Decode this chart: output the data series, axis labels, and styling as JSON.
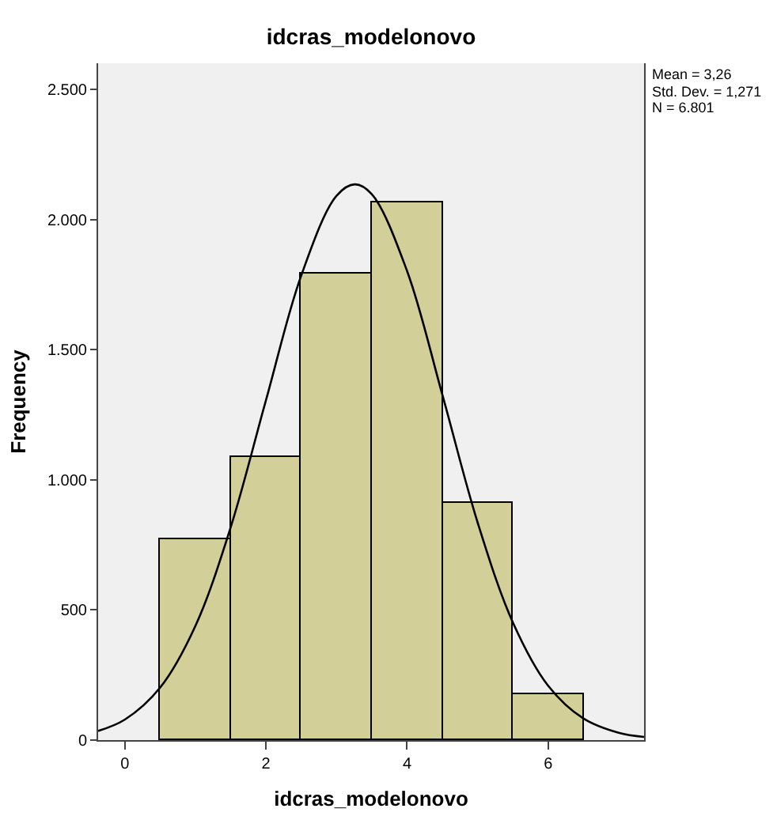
{
  "chart_data": {
    "type": "histogram",
    "title": "idcras_modelonovo",
    "xlabel": "idcras_modelonovo",
    "ylabel": "Frequency",
    "bins": [
      0.5,
      1.5,
      2.5,
      3.5,
      4.5,
      5.5,
      6.5
    ],
    "values": [
      770,
      1090,
      1790,
      2065,
      910,
      175
    ],
    "color": "#d3cf99",
    "series": [
      {
        "type": "line",
        "color": "#000000",
        "x": [
          -0.38,
          0,
          0.5,
          1,
          1.5,
          2,
          2.5,
          3,
          3.26,
          3.5,
          4,
          4.5,
          5,
          5.5,
          6,
          6.5,
          7,
          7.36
        ],
        "values": [
          35,
          79,
          202,
          439,
          818,
          1306,
          1785,
          2091,
          2135,
          2097,
          1802,
          1327,
          836,
          452,
          209,
          83,
          28,
          12
        ]
      }
    ],
    "xlim": [
      -0.38,
      7.36
    ],
    "xticks": [
      0,
      2,
      4,
      6
    ],
    "ylim": [
      0,
      2600
    ],
    "yticks": [
      0,
      500,
      {
        "value": 1000,
        "label": "1.000"
      },
      {
        "value": 1500,
        "label": "1.500"
      },
      {
        "value": 2000,
        "label": "2.000"
      },
      {
        "value": 2500,
        "label": "2.500"
      }
    ],
    "annotations": [
      "Mean = 3,26",
      "Std. Dev. = 1,271",
      "N = 6.801"
    ],
    "grid": false,
    "marker": "none",
    "line_style": "solid"
  }
}
